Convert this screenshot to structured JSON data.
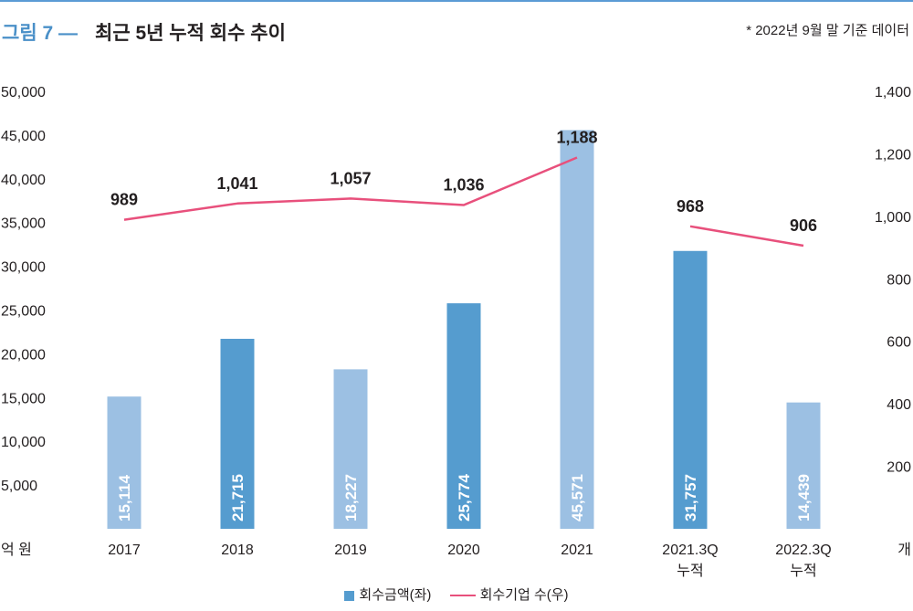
{
  "header": {
    "figure_label": "그림 7 —",
    "title": "최근 5년 누적 회수 추이",
    "note": "* 2022년 9월 말 기준 데이터"
  },
  "legend": {
    "bar_label": "회수금액(좌)",
    "line_label": "회수기업 수(우)"
  },
  "colors": {
    "bar_light": "#9cc0e3",
    "bar_dark": "#559ccf",
    "line": "#e8507c",
    "accent": "#4a90c8"
  },
  "chart_data": {
    "type": "bar",
    "title": "최근 5년 누적 회수 추이",
    "categories": [
      "2017",
      "2018",
      "2019",
      "2020",
      "2021",
      "2021.3Q\n누적",
      "2022.3Q\n누적"
    ],
    "series": [
      {
        "name": "회수금액(좌)",
        "type": "bar",
        "axis": "left",
        "values": [
          15114,
          21715,
          18227,
          25774,
          45571,
          31757,
          14439
        ],
        "labels": [
          "15,114",
          "21,715",
          "18,227",
          "25,774",
          "45,571",
          "31,757",
          "14,439"
        ],
        "shade": [
          "light",
          "dark",
          "light",
          "dark",
          "light",
          "dark",
          "light"
        ]
      },
      {
        "name": "회수기업 수(우)",
        "type": "line",
        "axis": "right",
        "values": [
          989,
          1041,
          1057,
          1036,
          1188,
          968,
          906
        ],
        "labels": [
          "989",
          "1,041",
          "1,057",
          "1,036",
          "1,188",
          "968",
          "906"
        ],
        "segments": [
          [
            0,
            4
          ],
          [
            5,
            6
          ]
        ]
      }
    ],
    "left_axis": {
      "unit": "억 원",
      "ylim": [
        0,
        50000
      ],
      "ticks": [
        5000,
        10000,
        15000,
        20000,
        25000,
        30000,
        35000,
        40000,
        45000,
        50000
      ],
      "tick_labels": [
        "5,000",
        "10,000",
        "15,000",
        "20,000",
        "25,000",
        "30,000",
        "35,000",
        "40,000",
        "45,000",
        "50,000"
      ]
    },
    "right_axis": {
      "unit": "개",
      "ylim": [
        0,
        1400
      ],
      "ticks": [
        200,
        400,
        600,
        800,
        1000,
        1200,
        1400
      ],
      "tick_labels": [
        "200",
        "400",
        "600",
        "800",
        "1,000",
        "1,200",
        "1,400"
      ]
    },
    "grid": false,
    "legend_position": "bottom-center"
  }
}
